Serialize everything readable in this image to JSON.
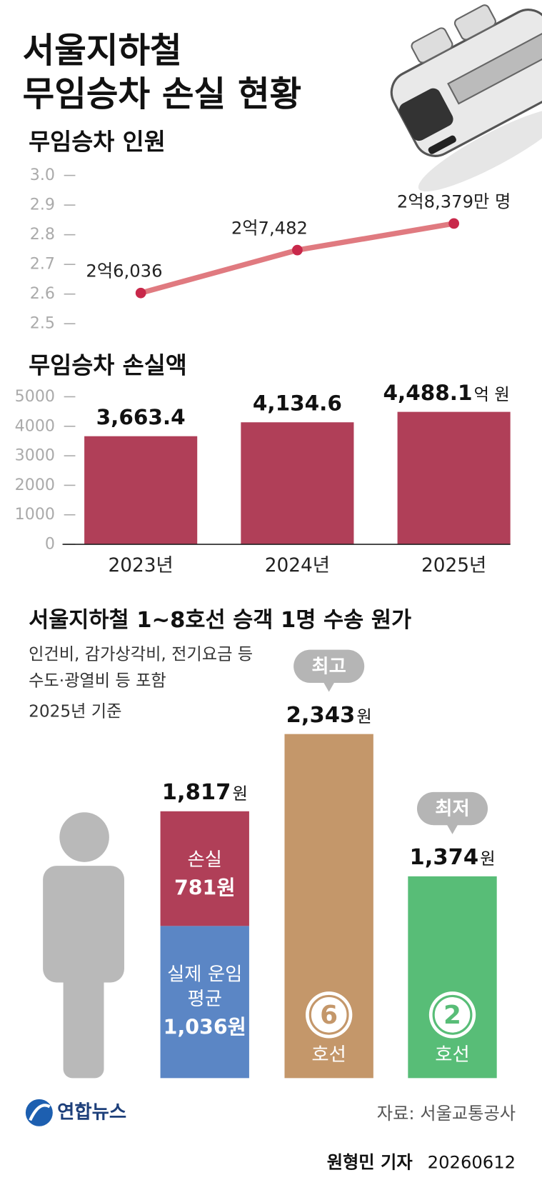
{
  "header": {
    "title": [
      "서울지하철",
      "무임승차 손실 현황"
    ]
  },
  "chart_data": [
    {
      "type": "line",
      "title": "무임승차 인원",
      "values": [
        2.6036,
        2.7482,
        2.8379
      ],
      "value_labels": [
        "2억6,036",
        "2억7,482",
        "2억8,379만 명"
      ],
      "color": "#e07a80",
      "marker_color": "#c8284a",
      "ylim": [
        2.5,
        3.0
      ],
      "yticks": [
        {
          "value": 3,
          "label": "3.0"
        },
        2.9,
        2.8,
        2.7,
        2.6,
        2.5
      ]
    },
    {
      "type": "bar",
      "title": "무임승차 손실액",
      "categories": [
        "2023년",
        "2024년",
        "2025년"
      ],
      "values": [
        3663.4,
        4134.6,
        4488.1
      ],
      "value_labels": [
        "3,663.4",
        "4,134.6",
        "4,488.1"
      ],
      "unit": "억 원",
      "color": "#b03f58",
      "ylim": [
        0,
        5000
      ],
      "yticks": [
        0,
        1000,
        2000,
        3000,
        4000,
        5000
      ]
    },
    {
      "type": "column",
      "title": "서울지하철 1~8호선 승객 1명 수송 원가",
      "notes": [
        "인건비, 감가상각비, 전기요금 등",
        "수도·광열비 등 포함"
      ],
      "basis": "2025년 기준",
      "unit": "원",
      "average": {
        "total": 1817,
        "total_label": "1,817",
        "segments": [
          {
            "name": [
              "실제 운임",
              "평균"
            ],
            "value": 1036,
            "value_label": "1,036원",
            "color": "#5b86c5"
          },
          {
            "name": [
              "손실"
            ],
            "value": 781,
            "value_label": "781원",
            "color": "#b03f58"
          }
        ]
      },
      "lines": [
        {
          "number": 6,
          "suffix": "호선",
          "badge": "최고",
          "value": 2343,
          "value_label": "2,343",
          "color": "#c4976a"
        },
        {
          "number": 2,
          "suffix": "호선",
          "badge": "최저",
          "value": 1374,
          "value_label": "1,374",
          "color": "#58bd77"
        }
      ]
    }
  ],
  "footer": {
    "logo": "연합뉴스",
    "source": "자료: 서울교통공사",
    "byline": "원형민 기자",
    "date": "20260612"
  }
}
